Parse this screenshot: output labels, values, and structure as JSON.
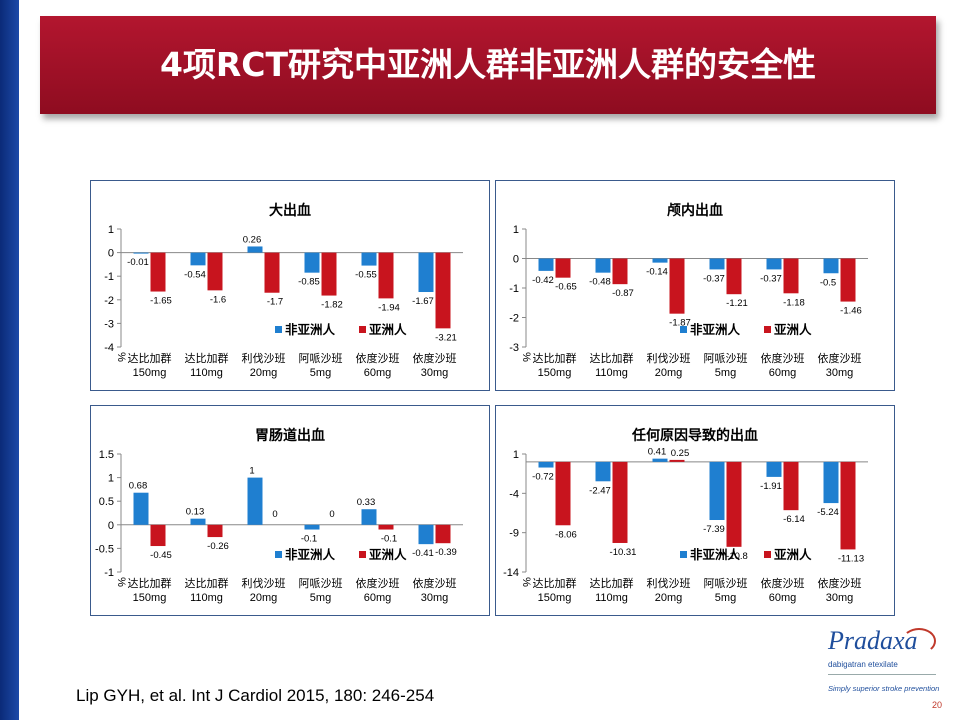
{
  "title": "4项RCT研究中亚洲人群非亚洲人群的安全性",
  "citation": "Lip GYH, et al. Int J Cardiol 2015, 180: 246-254",
  "page_number": "20",
  "logo": {
    "name": "Pradaxa",
    "subtitle": "dabigatran etexilate",
    "tagline": "Simply superior stroke prevention"
  },
  "colors": {
    "non_asian": "#1f7fd0",
    "asian": "#c8141e",
    "banner": "#a3122a"
  },
  "chart_data": [
    {
      "type": "bar",
      "title": "大出血",
      "ylabel": "%",
      "ylim": [
        -4,
        1
      ],
      "yticks": [
        1,
        0,
        -1,
        -2,
        -3,
        -4
      ],
      "categories": [
        [
          "达比加群",
          "150mg"
        ],
        [
          "达比加群",
          "110mg"
        ],
        [
          "利伐沙班",
          "20mg"
        ],
        [
          "阿哌沙班",
          "5mg"
        ],
        [
          "依度沙班",
          "60mg"
        ],
        [
          "依度沙班",
          "30mg"
        ]
      ],
      "series": [
        {
          "name": "非亚洲人",
          "values": [
            -0.01,
            -0.54,
            0.26,
            -0.85,
            -0.55,
            -1.67
          ]
        },
        {
          "name": "亚洲人",
          "values": [
            -1.65,
            -1.6,
            -1.7,
            -1.82,
            -1.94,
            -3.21
          ]
        }
      ],
      "legend": "bottom-right"
    },
    {
      "type": "bar",
      "title": "颅内出血",
      "ylabel": "%",
      "ylim": [
        -3,
        1
      ],
      "yticks": [
        1,
        0,
        -1,
        -2,
        -3
      ],
      "categories": [
        [
          "达比加群",
          "150mg"
        ],
        [
          "达比加群",
          "110mg"
        ],
        [
          "利伐沙班",
          "20mg"
        ],
        [
          "阿哌沙班",
          "5mg"
        ],
        [
          "依度沙班",
          "60mg"
        ],
        [
          "依度沙班",
          "30mg"
        ]
      ],
      "series": [
        {
          "name": "非亚洲人",
          "values": [
            -0.42,
            -0.48,
            -0.14,
            -0.37,
            -0.37,
            -0.5
          ]
        },
        {
          "name": "亚洲人",
          "values": [
            -0.65,
            -0.87,
            -1.87,
            -1.21,
            -1.18,
            -1.46
          ]
        }
      ],
      "legend": "bottom-right"
    },
    {
      "type": "bar",
      "title": "胃肠道出血",
      "ylabel": "%",
      "ylim": [
        -1,
        1.5
      ],
      "yticks": [
        1.5,
        1,
        0.5,
        0,
        -0.5,
        -1
      ],
      "categories": [
        [
          "达比加群",
          "150mg"
        ],
        [
          "达比加群",
          "110mg"
        ],
        [
          "利伐沙班",
          "20mg"
        ],
        [
          "阿哌沙班",
          "5mg"
        ],
        [
          "依度沙班",
          "60mg"
        ],
        [
          "依度沙班",
          "30mg"
        ]
      ],
      "series": [
        {
          "name": "非亚洲人",
          "values": [
            0.68,
            0.13,
            1,
            -0.1,
            0.33,
            -0.41
          ]
        },
        {
          "name": "亚洲人",
          "values": [
            -0.45,
            -0.26,
            0,
            0,
            -0.1,
            -0.39
          ]
        }
      ],
      "legend": "bottom-right"
    },
    {
      "type": "bar",
      "title": "任何原因导致的出血",
      "ylabel": "%",
      "ylim": [
        -14,
        1
      ],
      "yticks": [
        1,
        -4,
        -9,
        -14
      ],
      "categories": [
        [
          "达比加群",
          "150mg"
        ],
        [
          "达比加群",
          "110mg"
        ],
        [
          "利伐沙班",
          "20mg"
        ],
        [
          "阿哌沙班",
          "5mg"
        ],
        [
          "依度沙班",
          "60mg"
        ],
        [
          "依度沙班",
          "30mg"
        ]
      ],
      "series": [
        {
          "name": "非亚洲人",
          "values": [
            -0.72,
            -2.47,
            0.41,
            -7.39,
            -1.91,
            -5.24
          ]
        },
        {
          "name": "亚洲人",
          "values": [
            -8.06,
            -10.31,
            0.25,
            -10.8,
            -6.14,
            -11.13
          ]
        }
      ],
      "legend": "bottom-right"
    }
  ]
}
